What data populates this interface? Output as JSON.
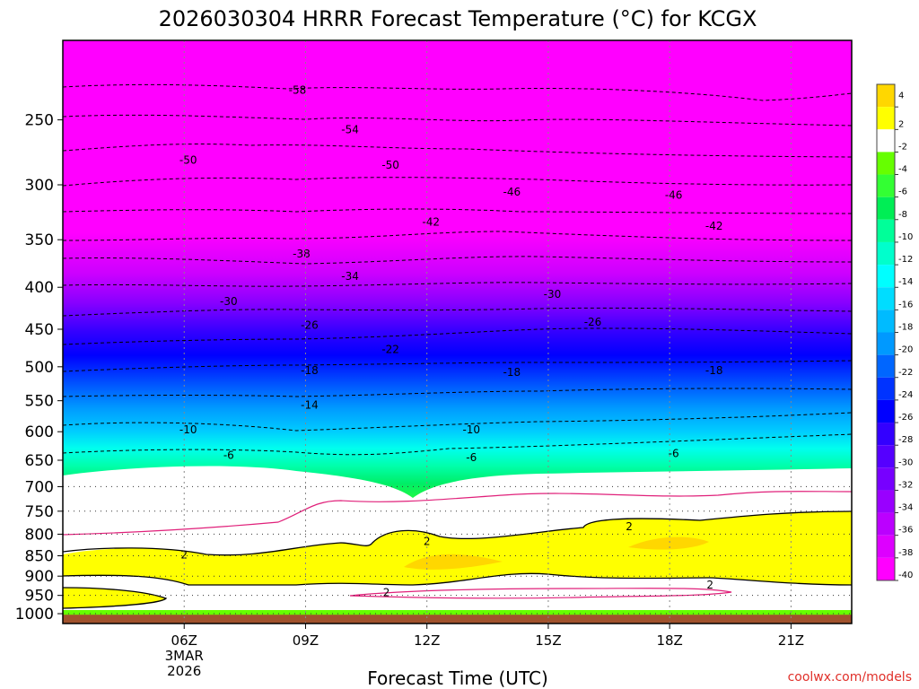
{
  "chart_data": {
    "type": "time-height contour",
    "title": "2026030304 HRRR Forecast Temperature (°C) for KCGX",
    "xlabel": "Forecast Time (UTC)",
    "ylabel": "",
    "credit": "coolwx.com/models",
    "credit_color": "#e0302a",
    "x_range_hours": [
      3,
      22.5
    ],
    "y_range_hpa": [
      1028,
      200
    ],
    "y_ticks": [
      250,
      300,
      350,
      400,
      450,
      500,
      550,
      600,
      650,
      700,
      750,
      800,
      850,
      900,
      950,
      1000
    ],
    "x_ticks": [
      {
        "hour": 6,
        "label": "06Z",
        "sub1": "3MAR",
        "sub2": "2026"
      },
      {
        "hour": 9,
        "label": "09Z"
      },
      {
        "hour": 12,
        "label": "12Z"
      },
      {
        "hour": 15,
        "label": "15Z"
      },
      {
        "hour": 18,
        "label": "18Z"
      },
      {
        "hour": 21,
        "label": "21Z"
      }
    ],
    "surface_pressure_hpa": 1003,
    "ground_color": "#a0522d",
    "colorbar": {
      "bins": [
        {
          "label": "4",
          "color": "#ffd700"
        },
        {
          "label": "2",
          "color": "#ffff00"
        },
        {
          "label": "-2",
          "color": "#ffffff"
        },
        {
          "label": "-4",
          "color": "#66ff00"
        },
        {
          "label": "-6",
          "color": "#33ff33"
        },
        {
          "label": "-8",
          "color": "#00ee55"
        },
        {
          "label": "-10",
          "color": "#00ff99"
        },
        {
          "label": "-12",
          "color": "#00ffcc"
        },
        {
          "label": "-14",
          "color": "#00ffff"
        },
        {
          "label": "-16",
          "color": "#00ddff"
        },
        {
          "label": "-18",
          "color": "#00bbff"
        },
        {
          "label": "-20",
          "color": "#0099ff"
        },
        {
          "label": "-22",
          "color": "#0066ff"
        },
        {
          "label": "-24",
          "color": "#0033ff"
        },
        {
          "label": "-26",
          "color": "#0000ff"
        },
        {
          "label": "-28",
          "color": "#3300ff"
        },
        {
          "label": "-30",
          "color": "#5500ff"
        },
        {
          "label": "-32",
          "color": "#7700ff"
        },
        {
          "label": "-34",
          "color": "#9900ff"
        },
        {
          "label": "-36",
          "color": "#bb00ff"
        },
        {
          "label": "-38",
          "color": "#dd00ff"
        },
        {
          "label": "-40",
          "color": "#ff00ff"
        }
      ]
    },
    "isotherm_labels": [
      {
        "text": "-58",
        "hour": 8.8,
        "hpa": 230
      },
      {
        "text": "-54",
        "hour": 10.1,
        "hpa": 257
      },
      {
        "text": "-50",
        "hour": 6.1,
        "hpa": 280
      },
      {
        "text": "-50",
        "hour": 11.1,
        "hpa": 284
      },
      {
        "text": "-46",
        "hour": 14.1,
        "hpa": 306
      },
      {
        "text": "-46",
        "hour": 18.1,
        "hpa": 309
      },
      {
        "text": "-42",
        "hour": 12.1,
        "hpa": 333
      },
      {
        "text": "-42",
        "hour": 19.1,
        "hpa": 337
      },
      {
        "text": "-38",
        "hour": 8.9,
        "hpa": 364
      },
      {
        "text": "-34",
        "hour": 10.1,
        "hpa": 388
      },
      {
        "text": "-30",
        "hour": 7.1,
        "hpa": 416
      },
      {
        "text": "-30",
        "hour": 15.1,
        "hpa": 408
      },
      {
        "text": "-26",
        "hour": 9.1,
        "hpa": 445
      },
      {
        "text": "-26",
        "hour": 16.1,
        "hpa": 441
      },
      {
        "text": "-22",
        "hour": 11.1,
        "hpa": 476
      },
      {
        "text": "-18",
        "hour": 9.1,
        "hpa": 505
      },
      {
        "text": "-18",
        "hour": 14.1,
        "hpa": 508
      },
      {
        "text": "-18",
        "hour": 19.1,
        "hpa": 505
      },
      {
        "text": "-14",
        "hour": 9.1,
        "hpa": 557
      },
      {
        "text": "-10",
        "hour": 6.1,
        "hpa": 597
      },
      {
        "text": "-10",
        "hour": 13.1,
        "hpa": 597
      },
      {
        "text": "-6",
        "hour": 7.1,
        "hpa": 641
      },
      {
        "text": "-6",
        "hour": 13.1,
        "hpa": 645
      },
      {
        "text": "-6",
        "hour": 18.1,
        "hpa": 638
      },
      {
        "text": "2",
        "hour": 6.0,
        "hpa": 848
      },
      {
        "text": "2",
        "hour": 12.0,
        "hpa": 816
      },
      {
        "text": "2",
        "hour": 17.0,
        "hpa": 783
      },
      {
        "text": "2",
        "hour": 19.0,
        "hpa": 922
      },
      {
        "text": "2",
        "hour": 11.0,
        "hpa": 942
      }
    ]
  }
}
